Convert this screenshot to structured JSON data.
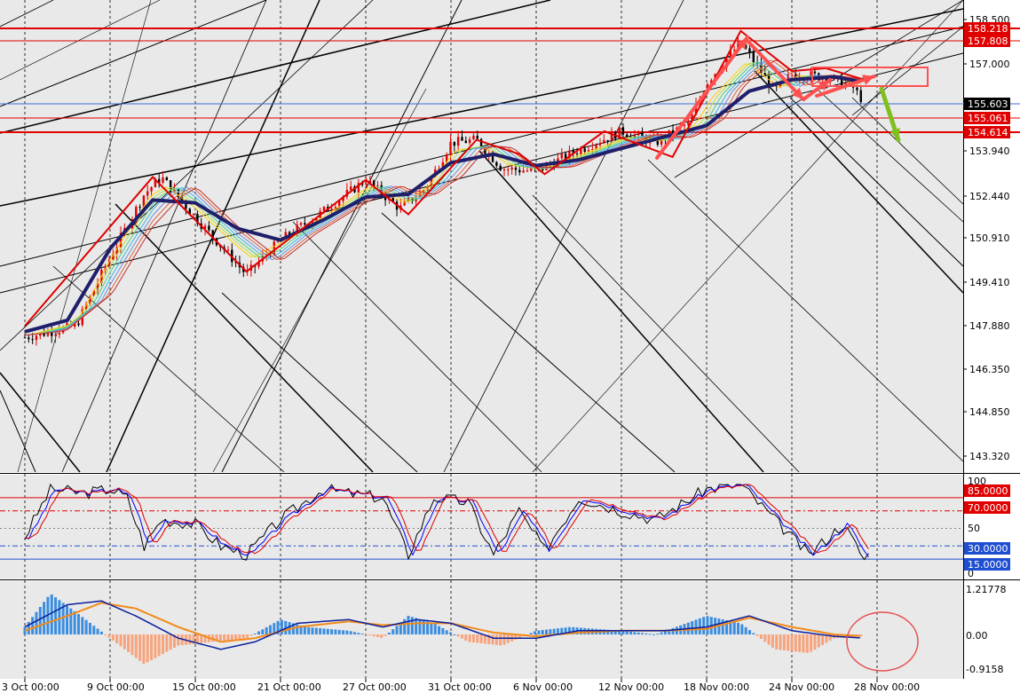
{
  "colors": {
    "background": "#e9e9e9",
    "bull": "#e00000",
    "bear": "#000000",
    "hline": "#e00000",
    "price_line": "#3a6fd1",
    "ema_slow": "#1f1f6b",
    "zigzag": "#e00000",
    "arrow_red": "#ff5050",
    "arrow_green": "#7fbf1f",
    "stoch_main": "#000000",
    "stoch_signal": "#0000ff",
    "stoch_mid": "#e00000",
    "macd_pos": "#3b8de0",
    "macd_neg": "#f7a37c",
    "macd_signal": "#f28a1a",
    "macd_line": "#0b1f9c",
    "tag_red": "#e00000",
    "tag_blue": "#1f4fd1",
    "tag_current": "#000000"
  },
  "x_axis": {
    "labels": [
      "3 Oct 00:00",
      "9 Oct 00:00",
      "15 Oct 00:00",
      "21 Oct 00:00",
      "27 Oct 00:00",
      "31 Oct 00:00",
      "6 Nov 00:00",
      "12 Nov 00:00",
      "18 Nov 00:00",
      "24 Nov 00:00",
      "28 Nov 00:00"
    ]
  },
  "price_axis": {
    "labels": [
      "158.500",
      "157.000",
      "155.603",
      "153.940",
      "152.440",
      "150.910",
      "149.410",
      "147.880",
      "146.350",
      "144.850",
      "143.320"
    ],
    "tags": [
      {
        "text": "158.218",
        "kind": "red"
      },
      {
        "text": "157.808",
        "kind": "red"
      },
      {
        "text": "155.603",
        "kind": "current"
      },
      {
        "text": "155.061",
        "kind": "red"
      },
      {
        "text": "154.614",
        "kind": "red"
      }
    ]
  },
  "stoch_axis": {
    "labels": [
      "100",
      "50",
      "0"
    ],
    "tags": [
      {
        "text": "85.0000",
        "kind": "red"
      },
      {
        "text": "70.0000",
        "kind": "red"
      },
      {
        "text": "30.0000",
        "kind": "blue"
      },
      {
        "text": "15.0000",
        "kind": "blue"
      }
    ]
  },
  "macd_axis": {
    "labels": [
      "1.21778",
      "0.00",
      "-0.9158"
    ]
  },
  "chart_data": [
    {
      "type": "candlestick",
      "panel": "price",
      "y_range": [
        142.6,
        159.0
      ],
      "horizontal_levels": [
        158.218,
        157.808,
        155.061,
        154.614
      ],
      "current_price": 155.603,
      "x_labels": [
        "3 Oct 00:00",
        "9 Oct 00:00",
        "15 Oct 00:00",
        "21 Oct 00:00",
        "27 Oct 00:00",
        "31 Oct 00:00",
        "6 Nov 00:00",
        "12 Nov 00:00",
        "18 Nov 00:00",
        "24 Nov 00:00",
        "28 Nov 00:00"
      ],
      "price_path": [
        [
          0,
          147.4
        ],
        [
          0.6,
          147.8
        ],
        [
          1.0,
          150.2
        ],
        [
          1.4,
          152.4
        ],
        [
          1.6,
          153.0
        ],
        [
          2.0,
          151.6
        ],
        [
          2.6,
          149.6
        ],
        [
          3.0,
          150.8
        ],
        [
          3.5,
          151.8
        ],
        [
          4.0,
          152.9
        ],
        [
          4.4,
          151.9
        ],
        [
          4.7,
          152.6
        ],
        [
          5.0,
          154.2
        ],
        [
          5.3,
          154.3
        ],
        [
          5.6,
          153.3
        ],
        [
          6.0,
          153.2
        ],
        [
          6.4,
          153.8
        ],
        [
          7.0,
          154.6
        ],
        [
          7.4,
          154.2
        ],
        [
          7.8,
          154.9
        ],
        [
          8.0,
          156.3
        ],
        [
          8.4,
          157.7
        ],
        [
          8.8,
          156.0
        ],
        [
          9.0,
          156.6
        ],
        [
          9.4,
          156.5
        ],
        [
          9.7,
          156.2
        ],
        [
          9.85,
          155.6
        ]
      ],
      "ema_slow_path": [
        [
          0,
          147.6
        ],
        [
          0.5,
          148.0
        ],
        [
          1.0,
          150.5
        ],
        [
          1.5,
          152.2
        ],
        [
          2.0,
          152.1
        ],
        [
          2.5,
          151.2
        ],
        [
          3.0,
          150.8
        ],
        [
          3.5,
          151.5
        ],
        [
          4.0,
          152.3
        ],
        [
          4.5,
          152.4
        ],
        [
          5.0,
          153.5
        ],
        [
          5.5,
          153.8
        ],
        [
          6.0,
          153.4
        ],
        [
          6.5,
          153.6
        ],
        [
          7.0,
          154.0
        ],
        [
          7.5,
          154.4
        ],
        [
          8.0,
          154.8
        ],
        [
          8.5,
          156.0
        ],
        [
          9.0,
          156.4
        ],
        [
          9.5,
          156.5
        ],
        [
          9.85,
          156.3
        ]
      ],
      "zigzag": [
        [
          0,
          147.8
        ],
        [
          1.5,
          153.0
        ],
        [
          2.6,
          149.7
        ],
        [
          4.0,
          152.9
        ],
        [
          4.5,
          151.7
        ],
        [
          5.3,
          154.3
        ],
        [
          5.8,
          153.8
        ],
        [
          6.1,
          153.1
        ],
        [
          6.8,
          154.6
        ],
        [
          7.6,
          153.7
        ],
        [
          8.4,
          158.1
        ],
        [
          9.0,
          156.7
        ],
        [
          9.4,
          156.8
        ],
        [
          9.85,
          156.4
        ]
      ]
    },
    {
      "type": "line",
      "panel": "stochastic",
      "y_range": [
        0,
        100
      ],
      "levels": [
        85,
        70,
        30,
        15
      ],
      "series": [
        {
          "values": [
            [
              0,
              40
            ],
            [
              0.3,
              95
            ],
            [
              0.7,
              90
            ],
            [
              1.0,
              95
            ],
            [
              1.2,
              85
            ],
            [
              1.4,
              30
            ],
            [
              1.6,
              60
            ],
            [
              2.0,
              55
            ],
            [
              2.3,
              30
            ],
            [
              2.6,
              20
            ],
            [
              3.0,
              60
            ],
            [
              3.5,
              95
            ],
            [
              3.8,
              90
            ],
            [
              4.2,
              85
            ],
            [
              4.5,
              20
            ],
            [
              4.8,
              85
            ],
            [
              5.2,
              80
            ],
            [
              5.5,
              20
            ],
            [
              5.8,
              70
            ],
            [
              6.1,
              25
            ],
            [
              6.5,
              85
            ],
            [
              7.0,
              70
            ],
            [
              7.4,
              60
            ],
            [
              8.0,
              95
            ],
            [
              8.4,
              100
            ],
            [
              8.8,
              60
            ],
            [
              9.2,
              20
            ],
            [
              9.6,
              55
            ],
            [
              9.85,
              15
            ],
            [
              9.95,
              25
            ]
          ]
        }
      ]
    },
    {
      "type": "bar",
      "panel": "macd",
      "y_range": [
        -0.9158,
        1.21778
      ],
      "series_note_none": "",
      "histogram": [
        [
          0,
          0.2
        ],
        [
          0.3,
          1.1
        ],
        [
          0.6,
          0.6
        ],
        [
          1.0,
          -0.1
        ],
        [
          1.4,
          -0.8
        ],
        [
          1.8,
          -0.3
        ],
        [
          2.2,
          -0.2
        ],
        [
          2.6,
          -0.1
        ],
        [
          3.0,
          0.4
        ],
        [
          3.3,
          0.2
        ],
        [
          3.8,
          0.1
        ],
        [
          4.2,
          -0.1
        ],
        [
          4.5,
          0.5
        ],
        [
          4.8,
          0.3
        ],
        [
          5.2,
          -0.2
        ],
        [
          5.6,
          -0.3
        ],
        [
          6.0,
          0.1
        ],
        [
          6.4,
          0.2
        ],
        [
          7.0,
          0.1
        ],
        [
          7.4,
          0.0
        ],
        [
          8.0,
          0.5
        ],
        [
          8.4,
          0.3
        ],
        [
          8.8,
          -0.4
        ],
        [
          9.2,
          -0.5
        ],
        [
          9.5,
          -0.1
        ],
        [
          9.85,
          -0.05
        ]
      ],
      "macd_line": [
        [
          0,
          0.2
        ],
        [
          0.5,
          0.8
        ],
        [
          0.9,
          0.9
        ],
        [
          1.3,
          0.5
        ],
        [
          1.8,
          -0.1
        ],
        [
          2.3,
          -0.4
        ],
        [
          2.7,
          -0.2
        ],
        [
          3.2,
          0.3
        ],
        [
          3.8,
          0.4
        ],
        [
          4.2,
          0.2
        ],
        [
          4.6,
          0.4
        ],
        [
          5.0,
          0.3
        ],
        [
          5.5,
          -0.1
        ],
        [
          6.0,
          -0.1
        ],
        [
          6.5,
          0.1
        ],
        [
          7.0,
          0.1
        ],
        [
          7.5,
          0.1
        ],
        [
          8.0,
          0.2
        ],
        [
          8.5,
          0.5
        ],
        [
          9.0,
          0.1
        ],
        [
          9.5,
          -0.05
        ],
        [
          9.85,
          -0.1
        ]
      ],
      "signal_line": [
        [
          0,
          0.1
        ],
        [
          0.5,
          0.5
        ],
        [
          0.9,
          0.85
        ],
        [
          1.3,
          0.7
        ],
        [
          1.8,
          0.2
        ],
        [
          2.3,
          -0.2
        ],
        [
          2.7,
          -0.1
        ],
        [
          3.2,
          0.2
        ],
        [
          3.8,
          0.35
        ],
        [
          4.2,
          0.25
        ],
        [
          4.6,
          0.3
        ],
        [
          5.0,
          0.3
        ],
        [
          5.5,
          0.05
        ],
        [
          6.0,
          -0.05
        ],
        [
          6.5,
          0.05
        ],
        [
          7.0,
          0.1
        ],
        [
          7.5,
          0.1
        ],
        [
          8.0,
          0.15
        ],
        [
          8.5,
          0.45
        ],
        [
          9.0,
          0.2
        ],
        [
          9.5,
          0.0
        ],
        [
          9.85,
          -0.05
        ]
      ]
    }
  ]
}
